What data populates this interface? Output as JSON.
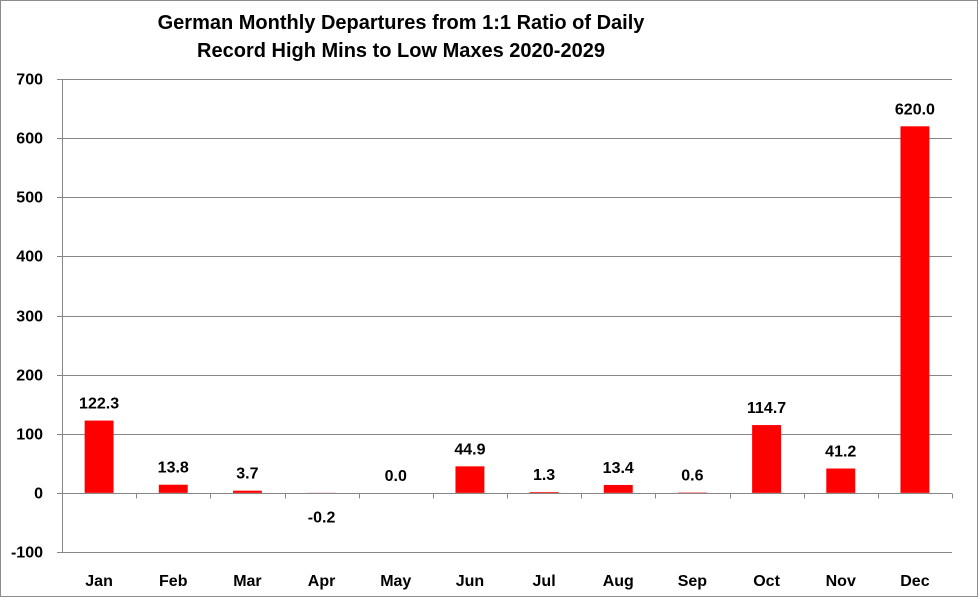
{
  "chart_data": {
    "type": "bar",
    "title_line1": "German Monthly Departures from 1:1 Ratio of Daily",
    "title_line2": "Record High Mins to Low Maxes 2020-2029",
    "xlabel": "",
    "ylabel": "",
    "categories": [
      "Jan",
      "Feb",
      "Mar",
      "Apr",
      "May",
      "Jun",
      "Jul",
      "Aug",
      "Sep",
      "Oct",
      "Nov",
      "Dec"
    ],
    "values": [
      122.3,
      13.8,
      3.7,
      -0.2,
      0.0,
      44.9,
      1.3,
      13.4,
      0.6,
      114.7,
      41.2,
      620.0
    ],
    "value_labels": [
      "122.3",
      "13.8",
      "3.7",
      "-0.2",
      "0.0",
      "44.9",
      "1.3",
      "13.4",
      "0.6",
      "114.7",
      "41.2",
      "620.0"
    ],
    "ylim": [
      -100,
      700
    ],
    "y_ticks": [
      -100,
      0,
      100,
      200,
      300,
      400,
      500,
      600,
      700
    ],
    "grid": true,
    "legend": "none",
    "bar_color": "#ff0000",
    "grid_color": "#868686"
  }
}
